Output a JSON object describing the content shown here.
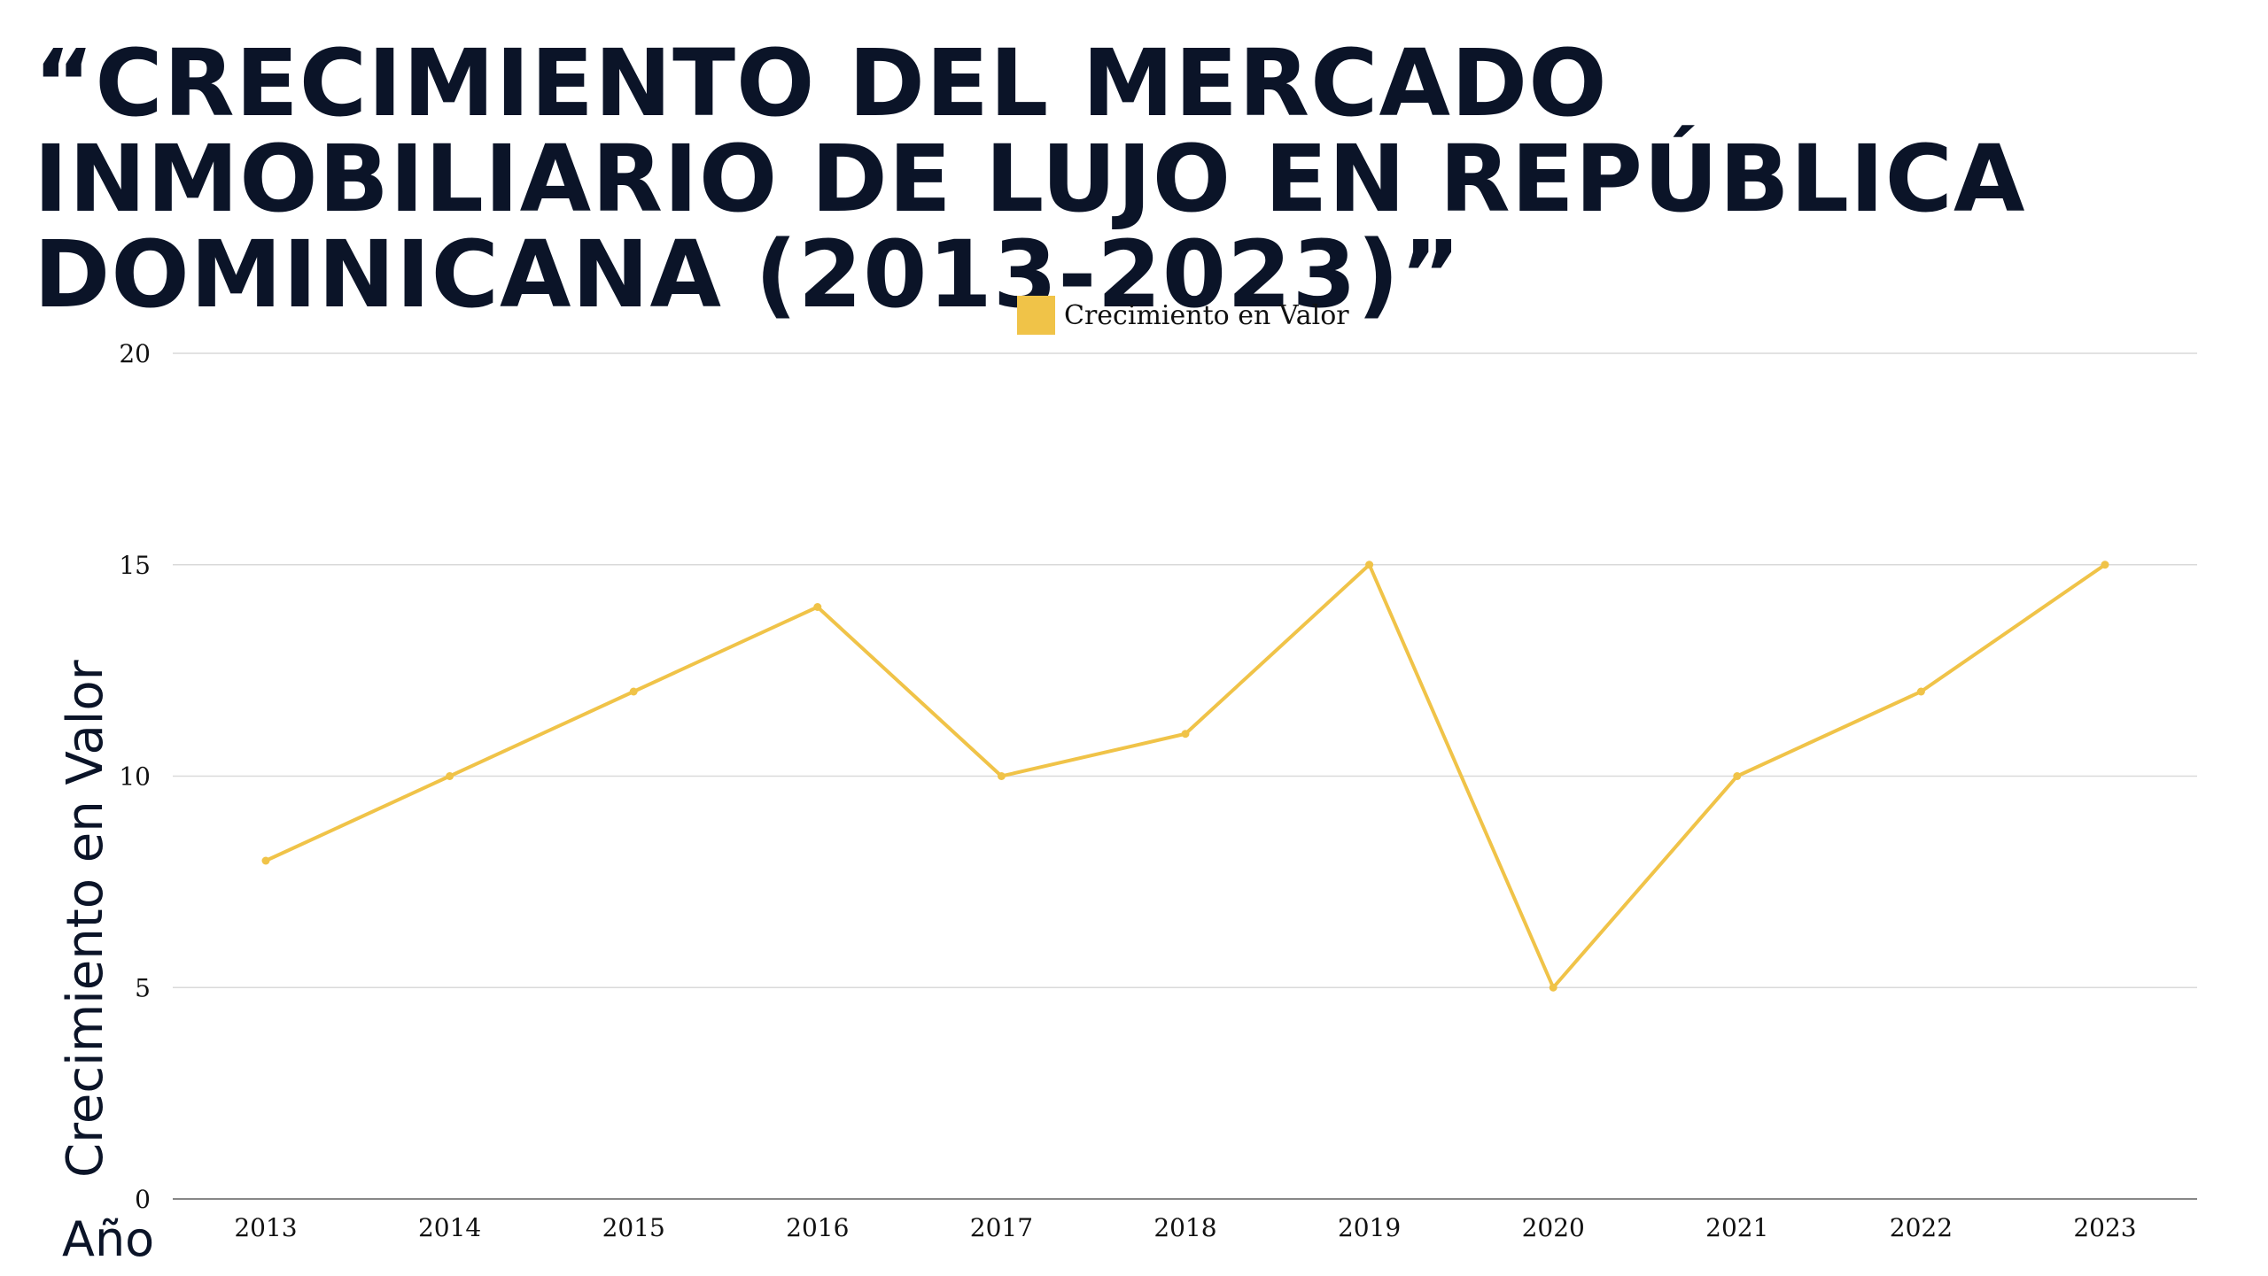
{
  "chart_data": {
    "type": "line",
    "title": "“CRECIMIENTO DEL MERCADO INMOBILIARIO DE LUJO EN REPÚBLICA DOMINICANA (2013-2023)”",
    "xlabel": "Año",
    "ylabel": "Crecimiento en Valor",
    "categories": [
      "2013",
      "2014",
      "2015",
      "2016",
      "2017",
      "2018",
      "2019",
      "2020",
      "2021",
      "2022",
      "2023"
    ],
    "series": [
      {
        "name": "Crecimiento en Valor",
        "color": "#f0c348",
        "values": [
          8,
          10,
          12,
          14,
          10,
          11,
          15,
          5,
          10,
          12,
          15
        ]
      }
    ],
    "ylim": [
      0,
      20
    ],
    "yticks": [
      0,
      5,
      10,
      15,
      20
    ],
    "grid": true,
    "legend": "top-center"
  }
}
